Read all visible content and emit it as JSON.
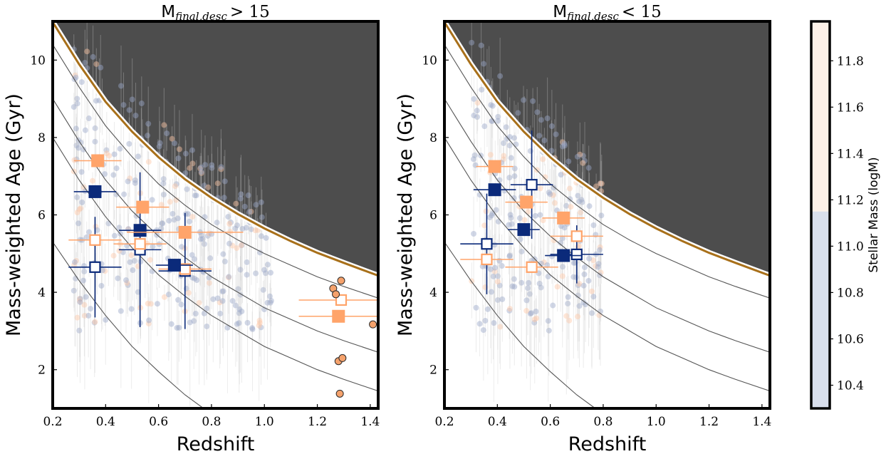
{
  "figure": {
    "panels": [
      {
        "title_main": "M",
        "title_sub": "final,desc",
        "title_rel": "> 15"
      },
      {
        "title_main": "M",
        "title_sub": "final,desc",
        "title_rel": "< 15"
      }
    ],
    "colorbar": {
      "label": "Stellar Mass (logM)",
      "ticks": [
        "10.4",
        "10.6",
        "10.8",
        "11.0",
        "11.2",
        "11.4",
        "11.6",
        "11.8"
      ],
      "range": [
        10.3,
        11.97
      ],
      "split": 11.15,
      "low_color": "#d9dfec",
      "high_color": "#fdf1e8"
    },
    "colors": {
      "navy": "#0b2a7a",
      "orange": "#ffa46a",
      "region": "#4d4d4d",
      "boundary": "#a8701a",
      "scatter_blue": "#9aa7c7",
      "scatter_orange": "#ffc8a6"
    }
  },
  "chart_data": [
    {
      "type": "scatter",
      "title": "M_final,desc > 15",
      "xlabel": "Redshift",
      "ylabel": "Mass-weighted Age (Gyr)",
      "xlim": [
        0.2,
        1.43
      ],
      "ylim": [
        1.0,
        11.0
      ],
      "x_ticks": [
        "0.2",
        "0.4",
        "0.6",
        "0.8",
        "1.0",
        "1.2",
        "1.4"
      ],
      "y_ticks": [
        "2",
        "4",
        "6",
        "8",
        "10"
      ],
      "grid": false,
      "age_of_universe_curve": [
        [
          0.2,
          10.98
        ],
        [
          0.3,
          9.89
        ],
        [
          0.4,
          8.92
        ],
        [
          0.5,
          8.15
        ],
        [
          0.6,
          7.49
        ],
        [
          0.7,
          6.92
        ],
        [
          0.8,
          6.44
        ],
        [
          0.9,
          6.02
        ],
        [
          1.0,
          5.65
        ],
        [
          1.1,
          5.32
        ],
        [
          1.2,
          5.02
        ],
        [
          1.3,
          4.76
        ],
        [
          1.43,
          4.43
        ]
      ],
      "reference_curves": [
        [
          [
            0.2,
            10.4
          ],
          [
            0.3,
            9.3
          ],
          [
            0.4,
            8.3
          ],
          [
            0.5,
            7.5
          ],
          [
            0.6,
            6.8
          ],
          [
            0.7,
            6.25
          ],
          [
            0.8,
            5.75
          ],
          [
            0.9,
            5.35
          ],
          [
            1.0,
            5.0
          ],
          [
            1.1,
            4.7
          ],
          [
            1.2,
            4.4
          ],
          [
            1.3,
            4.15
          ],
          [
            1.43,
            3.85
          ]
        ],
        [
          [
            0.2,
            9.0
          ],
          [
            0.3,
            7.9
          ],
          [
            0.4,
            6.9
          ],
          [
            0.5,
            6.1
          ],
          [
            0.6,
            5.45
          ],
          [
            0.7,
            4.9
          ],
          [
            0.8,
            4.4
          ],
          [
            0.9,
            4.0
          ],
          [
            1.0,
            3.6
          ],
          [
            1.1,
            3.3
          ],
          [
            1.2,
            3.0
          ],
          [
            1.3,
            2.75
          ],
          [
            1.43,
            2.45
          ]
        ],
        [
          [
            0.2,
            8.0
          ],
          [
            0.3,
            6.9
          ],
          [
            0.4,
            5.95
          ],
          [
            0.5,
            5.15
          ],
          [
            0.6,
            4.45
          ],
          [
            0.7,
            3.9
          ],
          [
            0.8,
            3.4
          ],
          [
            0.9,
            3.0
          ],
          [
            1.0,
            2.6
          ],
          [
            1.1,
            2.3
          ],
          [
            1.2,
            2.0
          ],
          [
            1.3,
            1.75
          ],
          [
            1.43,
            1.45
          ]
        ],
        [
          [
            0.2,
            5.3
          ],
          [
            0.3,
            4.3
          ],
          [
            0.4,
            3.4
          ],
          [
            0.5,
            2.6
          ],
          [
            0.6,
            1.95
          ],
          [
            0.7,
            1.35
          ],
          [
            0.77,
            1.0
          ]
        ]
      ],
      "filled_navy": [
        {
          "x": 0.36,
          "y": 6.6,
          "xerr": 0.08,
          "yerr": 0.15
        },
        {
          "x": 0.53,
          "y": 5.6,
          "xerr": 0.08,
          "yerr": 0.15
        },
        {
          "x": 0.66,
          "y": 4.7,
          "xerr": 0.07,
          "yerr": 0.15
        }
      ],
      "filled_orange": [
        {
          "x": 0.37,
          "y": 7.4,
          "xerr": 0.09,
          "yerr": 0.15
        },
        {
          "x": 0.54,
          "y": 6.2,
          "xerr": 0.1,
          "yerr": 0.15
        },
        {
          "x": 0.7,
          "y": 5.55,
          "xerr": 0.22,
          "yerr": 0.15
        },
        {
          "x": 1.28,
          "y": 3.38,
          "xerr": 0.15,
          "yerr": 0.1
        }
      ],
      "open_navy": [
        {
          "x": 0.36,
          "y": 4.65,
          "xerr": 0.1,
          "yerr": 1.3
        },
        {
          "x": 0.53,
          "y": 5.1,
          "xerr": 0.08,
          "yerr": 2.0
        },
        {
          "x": 0.7,
          "y": 4.55,
          "xerr": 0.1,
          "yerr": 1.5
        }
      ],
      "open_orange": [
        {
          "x": 0.36,
          "y": 5.35,
          "xerr": 0.1,
          "yerr": 0.15
        },
        {
          "x": 0.53,
          "y": 5.25,
          "xerr": 0.1,
          "yerr": 0.15
        },
        {
          "x": 0.7,
          "y": 4.6,
          "xerr": 0.1,
          "yerr": 0.15
        },
        {
          "x": 1.29,
          "y": 3.8,
          "xerr": 0.16,
          "yerr": 0.1
        }
      ],
      "highz_points": [
        [
          1.26,
          4.1
        ],
        [
          1.27,
          3.95
        ],
        [
          1.29,
          4.3
        ],
        [
          1.28,
          2.22
        ],
        [
          1.295,
          2.3
        ],
        [
          1.285,
          1.38
        ],
        [
          1.41,
          3.17
        ]
      ]
    },
    {
      "type": "scatter",
      "title": "M_final,desc < 15",
      "xlabel": "Redshift",
      "ylabel": "Mass-weighted Age (Gyr)",
      "xlim": [
        0.2,
        1.43
      ],
      "ylim": [
        1.0,
        11.0
      ],
      "x_ticks": [
        "0.2",
        "0.4",
        "0.6",
        "0.8",
        "1.0",
        "1.2",
        "1.4"
      ],
      "y_ticks": [
        "2",
        "4",
        "6",
        "8",
        "10"
      ],
      "grid": false,
      "age_of_universe_curve": [
        [
          0.2,
          10.98
        ],
        [
          0.3,
          9.89
        ],
        [
          0.4,
          8.92
        ],
        [
          0.5,
          8.15
        ],
        [
          0.6,
          7.49
        ],
        [
          0.7,
          6.92
        ],
        [
          0.8,
          6.44
        ],
        [
          0.9,
          6.02
        ],
        [
          1.0,
          5.65
        ],
        [
          1.1,
          5.32
        ],
        [
          1.2,
          5.02
        ],
        [
          1.3,
          4.76
        ],
        [
          1.43,
          4.43
        ]
      ],
      "reference_curves": [
        [
          [
            0.2,
            10.4
          ],
          [
            0.3,
            9.3
          ],
          [
            0.4,
            8.3
          ],
          [
            0.5,
            7.5
          ],
          [
            0.6,
            6.8
          ],
          [
            0.7,
            6.25
          ],
          [
            0.8,
            5.75
          ],
          [
            0.9,
            5.35
          ],
          [
            1.0,
            5.0
          ],
          [
            1.1,
            4.7
          ],
          [
            1.2,
            4.4
          ],
          [
            1.3,
            4.15
          ],
          [
            1.43,
            3.85
          ]
        ],
        [
          [
            0.2,
            9.0
          ],
          [
            0.3,
            7.9
          ],
          [
            0.4,
            6.9
          ],
          [
            0.5,
            6.1
          ],
          [
            0.6,
            5.45
          ],
          [
            0.7,
            4.9
          ],
          [
            0.8,
            4.4
          ],
          [
            0.9,
            4.0
          ],
          [
            1.0,
            3.6
          ],
          [
            1.1,
            3.3
          ],
          [
            1.2,
            3.0
          ],
          [
            1.3,
            2.75
          ],
          [
            1.43,
            2.45
          ]
        ],
        [
          [
            0.2,
            8.0
          ],
          [
            0.3,
            6.9
          ],
          [
            0.4,
            5.95
          ],
          [
            0.5,
            5.15
          ],
          [
            0.6,
            4.45
          ],
          [
            0.7,
            3.9
          ],
          [
            0.8,
            3.4
          ],
          [
            0.9,
            3.0
          ],
          [
            1.0,
            2.6
          ],
          [
            1.1,
            2.3
          ],
          [
            1.2,
            2.0
          ],
          [
            1.3,
            1.75
          ],
          [
            1.43,
            1.45
          ]
        ],
        [
          [
            0.2,
            5.3
          ],
          [
            0.3,
            4.3
          ],
          [
            0.4,
            3.4
          ],
          [
            0.5,
            2.6
          ],
          [
            0.6,
            1.95
          ],
          [
            0.7,
            1.35
          ],
          [
            0.77,
            1.0
          ]
        ]
      ],
      "filled_navy": [
        {
          "x": 0.39,
          "y": 6.65,
          "xerr": 0.08,
          "yerr": 0.15
        },
        {
          "x": 0.5,
          "y": 5.62,
          "xerr": 0.06,
          "yerr": 0.15
        },
        {
          "x": 0.65,
          "y": 4.95,
          "xerr": 0.07,
          "yerr": 0.15
        }
      ],
      "filled_orange": [
        {
          "x": 0.39,
          "y": 7.25,
          "xerr": 0.07,
          "yerr": 0.15
        },
        {
          "x": 0.51,
          "y": 6.33,
          "xerr": 0.08,
          "yerr": 0.15
        },
        {
          "x": 0.65,
          "y": 5.92,
          "xerr": 0.08,
          "yerr": 0.15
        }
      ],
      "open_navy": [
        {
          "x": 0.36,
          "y": 5.25,
          "xerr": 0.1,
          "yerr": 1.3
        },
        {
          "x": 0.53,
          "y": 6.78,
          "xerr": 0.08,
          "yerr": 1.4
        },
        {
          "x": 0.7,
          "y": 4.98,
          "xerr": 0.1,
          "yerr": 0.75
        }
      ],
      "open_orange": [
        {
          "x": 0.36,
          "y": 4.85,
          "xerr": 0.1,
          "yerr": 0.15
        },
        {
          "x": 0.53,
          "y": 4.65,
          "xerr": 0.1,
          "yerr": 0.15
        },
        {
          "x": 0.7,
          "y": 5.45,
          "xerr": 0.1,
          "yerr": 0.15
        }
      ],
      "highz_points": []
    }
  ]
}
